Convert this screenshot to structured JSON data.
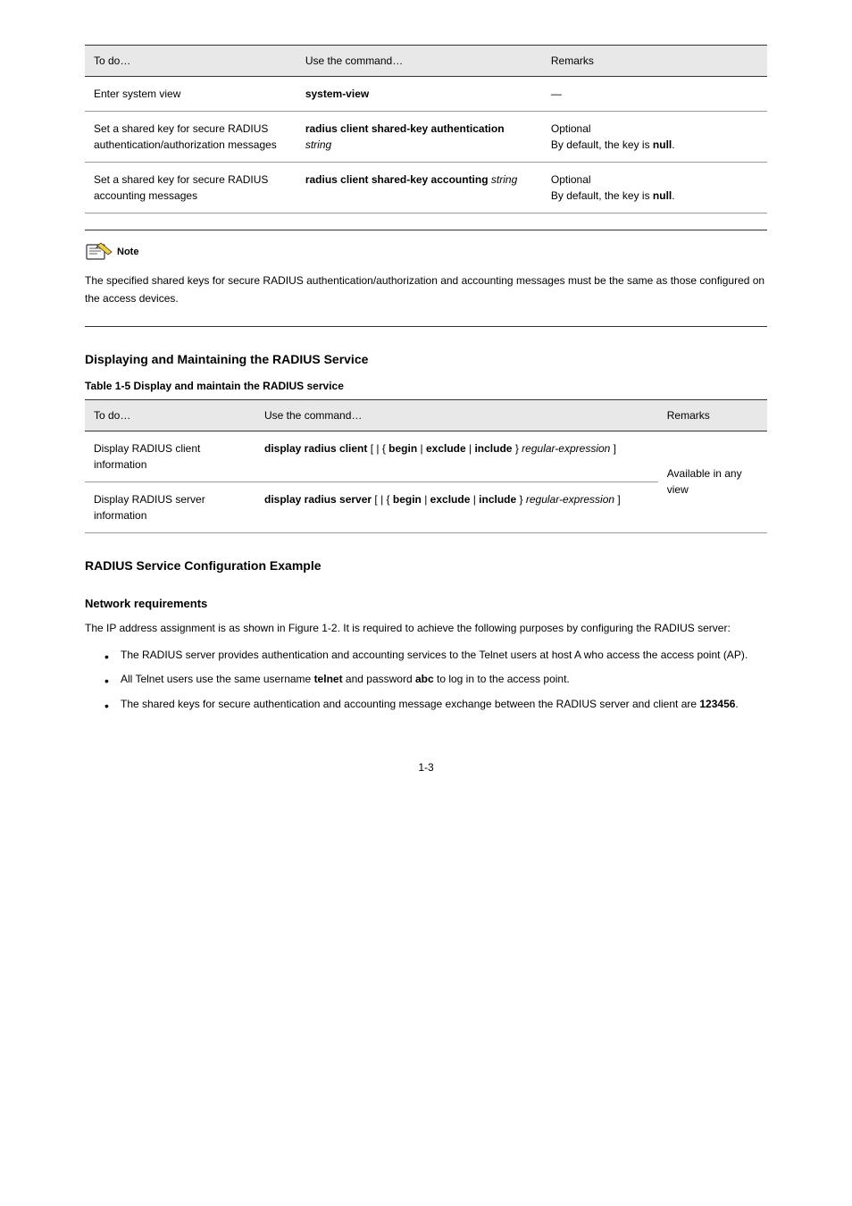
{
  "table1": {
    "headers": [
      "To do…",
      "Use the command…",
      "Remarks"
    ],
    "rows": [
      {
        "c1": "Enter system view",
        "c2": "system-view",
        "c3": "—"
      },
      {
        "c1": "Set a shared key for secure RADIUS authentication/authorization messages",
        "c2_label": "",
        "c2_bold": "radius client shared-key authentication",
        "c2_ital": " string",
        "c3_pre": "Optional\nBy default, the key is ",
        "c3_bold": "null",
        "c3_post": "."
      },
      {
        "c1": "Set a shared key for secure RADIUS accounting messages",
        "c2_label": "",
        "c2_bold": "radius client shared-key accounting",
        "c2_ital": " string",
        "c3_pre": "Optional\nBy default, the key is ",
        "c3_bold": "null",
        "c3_post": "."
      }
    ]
  },
  "note": {
    "label": "Note",
    "text": "The specified shared keys for secure RADIUS authentication/authorization and accounting messages must be the same as those configured on the access devices."
  },
  "section_display": {
    "heading": "Displaying and Maintaining the RADIUS Service",
    "table_caption": "Table 1-5 Display and maintain the RADIUS service",
    "table": {
      "headers": [
        "To do…",
        "Use the command…",
        "Remarks"
      ],
      "rows": [
        {
          "c1": "Display RADIUS client information",
          "c2_bold": "display radius client",
          "c2_post": " [ | { ",
          "c2_bold2": "begin",
          "c2_mid": " | ",
          "c2_bold3": "exclude",
          "c2_mid2": " | ",
          "c2_bold4": "include",
          "c2_post2": " } ",
          "c2_ital": "regular-expression",
          "c2_end": " ]",
          "c3": "Available in any view"
        },
        {
          "c1": "Display RADIUS server information",
          "c2_bold": "display radius server",
          "c2_post": " [ | { ",
          "c2_bold2": "begin",
          "c2_mid": " | ",
          "c2_bold3": "exclude",
          "c2_mid2": " | ",
          "c2_bold4": "include",
          "c2_post2": " } ",
          "c2_ital": "regular-expression",
          "c2_end": " ]",
          "c3": ""
        }
      ]
    }
  },
  "example": {
    "heading": "RADIUS Service Configuration Example",
    "sub_heading": "Network requirements",
    "intro": "The IP address assignment is as shown in Figure 1-2. It is required to achieve the following purposes by configuring the RADIUS server:",
    "bullets": [
      "The RADIUS server provides authentication and accounting services to the Telnet users at host A who access the access point (AP).",
      "All Telnet users use the same username telnet and password abc to log in to the access point.",
      "The shared keys for secure authentication and accounting message exchange between the RADIUS server and client are 123456."
    ]
  },
  "page_number": "1-3"
}
